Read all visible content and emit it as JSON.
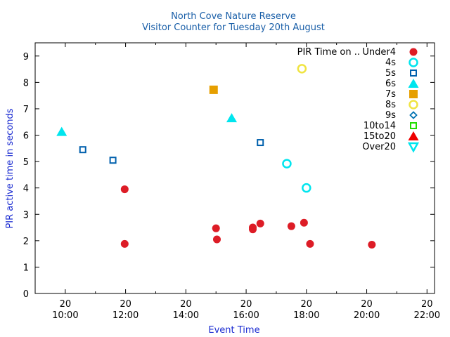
{
  "chart_data": {
    "type": "scatter",
    "title": "North Cove Nature Reserve",
    "subtitle": "Visitor Counter for Tuesday 20th August",
    "xlabel": "Event Time",
    "ylabel": "PIR active time in seconds",
    "xlim": [
      9.0,
      22.25
    ],
    "ylim": [
      0,
      9.5
    ],
    "y_ticks": [
      0,
      1,
      2,
      3,
      4,
      5,
      6,
      7,
      8,
      9
    ],
    "x_ticks": [
      {
        "value": 10,
        "day": "20",
        "time": "10:00"
      },
      {
        "value": 12,
        "day": "20",
        "time": "12:00"
      },
      {
        "value": 14,
        "day": "20",
        "time": "14:00"
      },
      {
        "value": 16,
        "day": "20",
        "time": "16:00"
      },
      {
        "value": 18,
        "day": "20",
        "time": "18:00"
      },
      {
        "value": 20,
        "day": "20",
        "time": "20:00"
      },
      {
        "value": 22,
        "day": "20",
        "time": "22:00"
      }
    ],
    "legend_title": "PIR Time on ..",
    "legend_position": "top-right",
    "series": [
      {
        "name": "Under4",
        "marker": "filled-circle",
        "color": "#dd1c26",
        "points": [
          [
            11.97,
            3.95
          ],
          [
            11.97,
            1.88
          ],
          [
            15.0,
            2.47
          ],
          [
            15.03,
            2.05
          ],
          [
            16.22,
            2.5
          ],
          [
            16.22,
            2.43
          ],
          [
            16.47,
            2.65
          ],
          [
            17.5,
            2.55
          ],
          [
            17.92,
            2.68
          ],
          [
            18.12,
            1.88
          ],
          [
            20.17,
            1.85
          ]
        ]
      },
      {
        "name": "4s",
        "marker": "open-circle",
        "color": "#00e5ee",
        "points": [
          [
            17.35,
            4.92
          ],
          [
            18.0,
            4.0
          ]
        ]
      },
      {
        "name": "5s",
        "marker": "open-square",
        "color": "#0060ad",
        "points": [
          [
            10.58,
            5.45
          ],
          [
            11.58,
            5.05
          ],
          [
            16.47,
            5.72
          ]
        ]
      },
      {
        "name": "6s",
        "marker": "filled-triangle-up",
        "color": "#00e5ee",
        "points": [
          [
            9.88,
            6.13
          ],
          [
            15.52,
            6.65
          ]
        ]
      },
      {
        "name": "7s",
        "marker": "filled-square",
        "color": "#e69f00",
        "points": [
          [
            14.92,
            7.72
          ]
        ]
      },
      {
        "name": "8s",
        "marker": "open-circle",
        "color": "#f0e442",
        "points": [
          [
            17.85,
            8.52
          ]
        ]
      },
      {
        "name": "9s",
        "marker": "open-diamond",
        "color": "#0072b2",
        "points": []
      },
      {
        "name": "10to14",
        "marker": "open-square",
        "color": "#22dd00",
        "points": []
      },
      {
        "name": "15to20",
        "marker": "filled-triangle-up",
        "color": "#ee0000",
        "points": []
      },
      {
        "name": "Over20",
        "marker": "open-triangle-down",
        "color": "#00e5ee",
        "points": []
      }
    ]
  }
}
